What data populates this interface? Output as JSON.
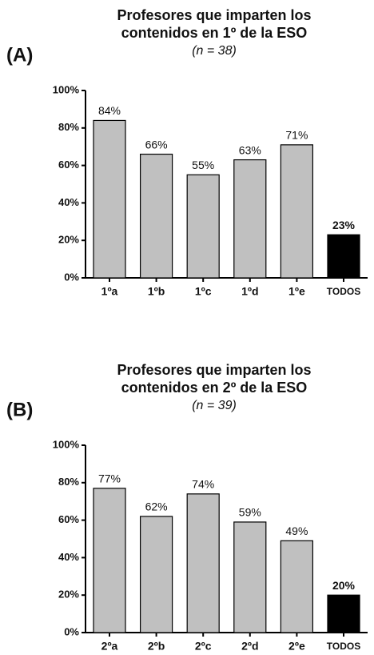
{
  "chart_data": [
    {
      "type": "bar",
      "panel_label": "(A)",
      "title": [
        "Profesores que imparten los",
        "contenidos en 1º de la ESO"
      ],
      "subtitle": "(n = 38)",
      "categories": [
        "1ºa",
        "1ºb",
        "1ºc",
        "1ºd",
        "1ºe",
        "TODOS"
      ],
      "values": [
        84,
        66,
        55,
        63,
        71,
        23
      ],
      "value_labels": [
        "84%",
        "66%",
        "55%",
        "63%",
        "71%",
        "23%"
      ],
      "colors": [
        "#c0c0c0",
        "#c0c0c0",
        "#c0c0c0",
        "#c0c0c0",
        "#c0c0c0",
        "#000000"
      ],
      "ylim": [
        0,
        100
      ],
      "yticks": [
        {
          "value": 0,
          "label": "0%"
        },
        {
          "value": 20,
          "label": "20%"
        },
        {
          "value": 40,
          "label": "40%"
        },
        {
          "value": 60,
          "label": "60%"
        },
        {
          "value": 80,
          "label": "80%"
        },
        {
          "value": 100,
          "label": "100%"
        }
      ]
    },
    {
      "type": "bar",
      "panel_label": "(B)",
      "title": [
        "Profesores que imparten los",
        "contenidos en 2º de la ESO"
      ],
      "subtitle": "(n = 39)",
      "categories": [
        "2ºa",
        "2ºb",
        "2ºc",
        "2ºd",
        "2ºe",
        "TODOS"
      ],
      "values": [
        77,
        62,
        74,
        59,
        49,
        20
      ],
      "value_labels": [
        "77%",
        "62%",
        "74%",
        "59%",
        "49%",
        "20%"
      ],
      "colors": [
        "#c0c0c0",
        "#c0c0c0",
        "#c0c0c0",
        "#c0c0c0",
        "#c0c0c0",
        "#000000"
      ],
      "ylim": [
        0,
        100
      ],
      "yticks": [
        {
          "value": 0,
          "label": "0%"
        },
        {
          "value": 20,
          "label": "20%"
        },
        {
          "value": 40,
          "label": "40%"
        },
        {
          "value": 60,
          "label": "60%"
        },
        {
          "value": 80,
          "label": "80%"
        },
        {
          "value": 100,
          "label": "100%"
        }
      ]
    }
  ]
}
